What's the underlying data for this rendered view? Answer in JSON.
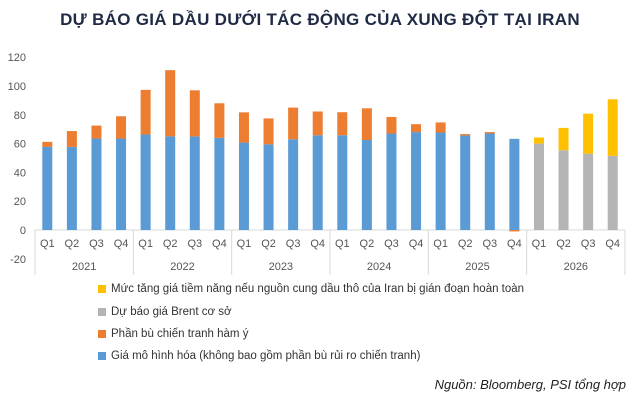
{
  "chart_data": {
    "type": "bar",
    "stacked": true,
    "title": "DỰ BÁO GIÁ DẦU DƯỚI TÁC ĐỘNG CỦA XUNG ĐỘT TẠI IRAN",
    "xlabel": "",
    "ylabel": "",
    "ylim": [
      -20,
      120
    ],
    "yticks": [
      -20,
      0,
      20,
      40,
      60,
      80,
      100,
      120
    ],
    "grid": false,
    "legend_position": "bottom-left",
    "categories": [
      "Q1",
      "Q2",
      "Q3",
      "Q4",
      "Q1",
      "Q2",
      "Q3",
      "Q4",
      "Q1",
      "Q2",
      "Q3",
      "Q4",
      "Q1",
      "Q2",
      "Q3",
      "Q4",
      "Q1",
      "Q2",
      "Q3",
      "Q4",
      "Q1",
      "Q2",
      "Q3",
      "Q4"
    ],
    "groups": [
      "2021",
      "2022",
      "2023",
      "2024",
      "2025",
      "2026"
    ],
    "series": [
      {
        "name": "Giá mô hình hóa (không bao gồm phần bù rủi ro chiến tranh)",
        "color": "#5b9bd5",
        "values": [
          57.7,
          57.7,
          63.5,
          63.5,
          66.3,
          65,
          65,
          64,
          60.7,
          59.5,
          63,
          65.8,
          65.8,
          62.5,
          67,
          68,
          67.7,
          65.6,
          67,
          63.3,
          0,
          0,
          0,
          0
        ]
      },
      {
        "name": "Phần bù chiến tranh hàm ý",
        "color": "#ed7d31",
        "values": [
          3.5,
          11,
          9,
          15.5,
          31,
          46,
          32,
          24,
          21,
          18,
          22,
          16.5,
          16,
          22,
          11.5,
          5.5,
          7,
          1,
          1,
          -1,
          0,
          0,
          0,
          0
        ]
      },
      {
        "name": "Dự báo giá Brent cơ sở",
        "color": "#b4b4b4",
        "values": [
          0,
          0,
          0,
          0,
          0,
          0,
          0,
          0,
          0,
          0,
          0,
          0,
          0,
          0,
          0,
          0,
          0,
          0,
          0,
          0,
          60,
          55.4,
          53,
          51.5
        ]
      },
      {
        "name": "Mức tăng giá tiềm năng nếu nguồn cung dầu thô của Iran bị gián đoạn hoàn toàn",
        "color": "#ffc000",
        "values": [
          0,
          0,
          0,
          0,
          0,
          0,
          0,
          0,
          0,
          0,
          0,
          0,
          0,
          0,
          0,
          0,
          0,
          0,
          0,
          0,
          4.2,
          15.5,
          27.8,
          39.3
        ]
      }
    ],
    "legend_order": [
      3,
      2,
      1,
      0
    ],
    "source": "Nguồn: Bloomberg, PSI tổng hợp"
  }
}
